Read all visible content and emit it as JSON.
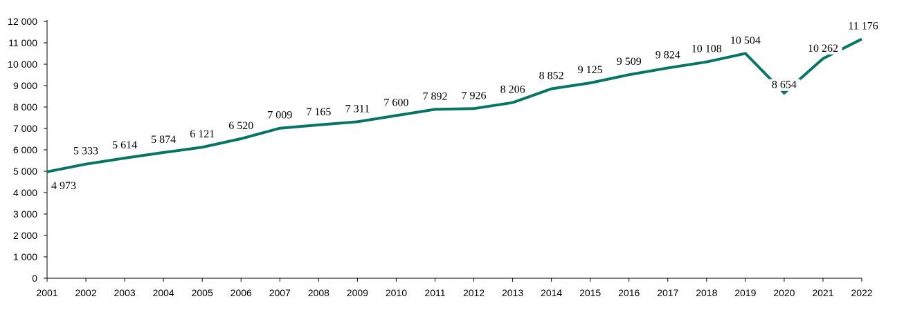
{
  "chart_data": {
    "type": "line",
    "title": "",
    "xlabel": "",
    "ylabel": "",
    "x": [
      "2001",
      "2002",
      "2003",
      "2004",
      "2005",
      "2006",
      "2007",
      "2008",
      "2009",
      "2010",
      "2011",
      "2012",
      "2013",
      "2014",
      "2015",
      "2016",
      "2017",
      "2018",
      "2019",
      "2020",
      "2021",
      "2022"
    ],
    "series": [
      {
        "values": [
          4973,
          5333,
          5614,
          5874,
          6121,
          6520,
          7009,
          7165,
          7311,
          7600,
          7892,
          7926,
          8206,
          8852,
          9125,
          9509,
          9824,
          10108,
          10504,
          8654,
          10262,
          11176
        ],
        "color": "#077566"
      }
    ],
    "data_labels": [
      "4 973",
      "5 333",
      "5 614",
      "5 874",
      "6 121",
      "6 520",
      "7 009",
      "7 165",
      "7 311",
      "7 600",
      "7 892",
      "7 926",
      "8 206",
      "8 852",
      "9 125",
      "9 509",
      "9 824",
      "10 108",
      "10 504",
      "8 654",
      "10 262",
      "11 176"
    ],
    "ylim": [
      0,
      12000
    ],
    "yticks": [
      0,
      1000,
      2000,
      3000,
      4000,
      5000,
      6000,
      7000,
      8000,
      9000,
      10000,
      11000,
      12000
    ],
    "ytick_labels": [
      "0",
      "1 000",
      "2 000",
      "3 000",
      "4 000",
      "5 000",
      "6 000",
      "7 000",
      "8 000",
      "9 000",
      "10 000",
      "11 000",
      "12 000"
    ],
    "grid": false,
    "legend": "none"
  }
}
